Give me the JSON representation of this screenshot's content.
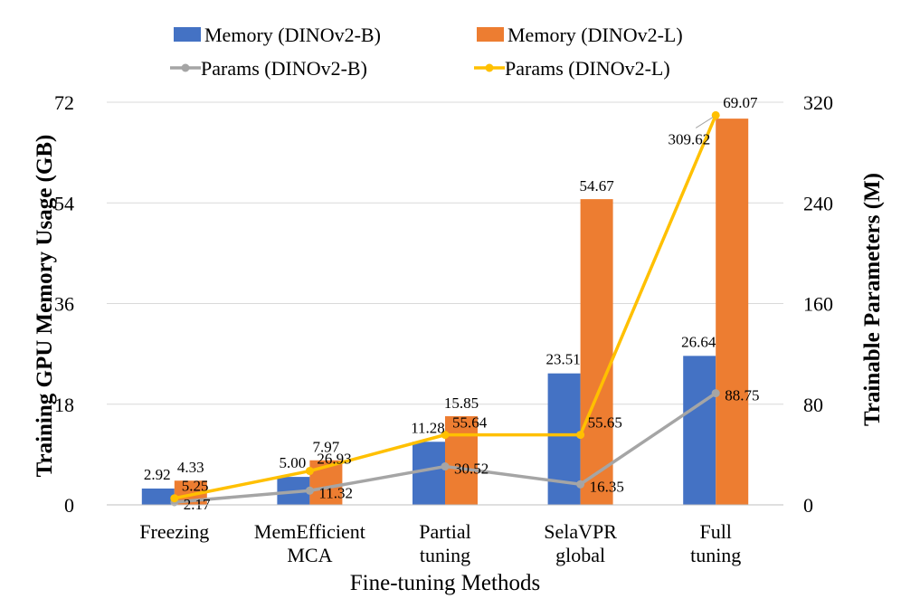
{
  "chart_data": {
    "type": "bar+line",
    "categories": [
      [
        "Freezing"
      ],
      [
        "MemEfficient",
        "MCA"
      ],
      [
        "Partial",
        "tuning"
      ],
      [
        "SelaVPR",
        "global"
      ],
      [
        "Full",
        "tuning"
      ]
    ],
    "xlabel": "Fine-tuning Methods",
    "ylabel_left": "Training GPU Memory Usage (GB)",
    "ylabel_right": "Trainable Parameters (M)",
    "ylim_left": [
      0,
      72
    ],
    "yticks_left": [
      0,
      18,
      36,
      54,
      72
    ],
    "ylim_right": [
      0,
      320
    ],
    "yticks_right": [
      0,
      80,
      160,
      240,
      320
    ],
    "bar_series": [
      {
        "name": "Memory (DINOv2-B)",
        "color": "#4472C4",
        "values": [
          2.92,
          5.0,
          11.28,
          23.51,
          26.64
        ],
        "labels": [
          "2.92",
          "5.00",
          "11.28",
          "23.51",
          "26.64"
        ]
      },
      {
        "name": "Memory (DINOv2-L)",
        "color": "#ED7D31",
        "values": [
          4.33,
          7.97,
          15.85,
          54.67,
          69.07
        ],
        "labels": [
          "4.33",
          "7.97",
          "15.85",
          "54.67",
          "69.07"
        ]
      }
    ],
    "line_series": [
      {
        "name": "Params (DINOv2-B)",
        "color": "#A5A5A5",
        "values": [
          2.17,
          11.32,
          30.52,
          16.35,
          88.75
        ],
        "labels": [
          "2.17",
          "11.32",
          "30.52",
          "16.35",
          "88.75"
        ]
      },
      {
        "name": "Params (DINOv2-L)",
        "color": "#FFC000",
        "values": [
          5.25,
          26.93,
          55.64,
          55.65,
          309.62
        ],
        "labels": [
          "5.25",
          "26.93",
          "55.64",
          "55.65",
          "309.62"
        ]
      }
    ],
    "grid": "horizontal",
    "legend": "top"
  }
}
